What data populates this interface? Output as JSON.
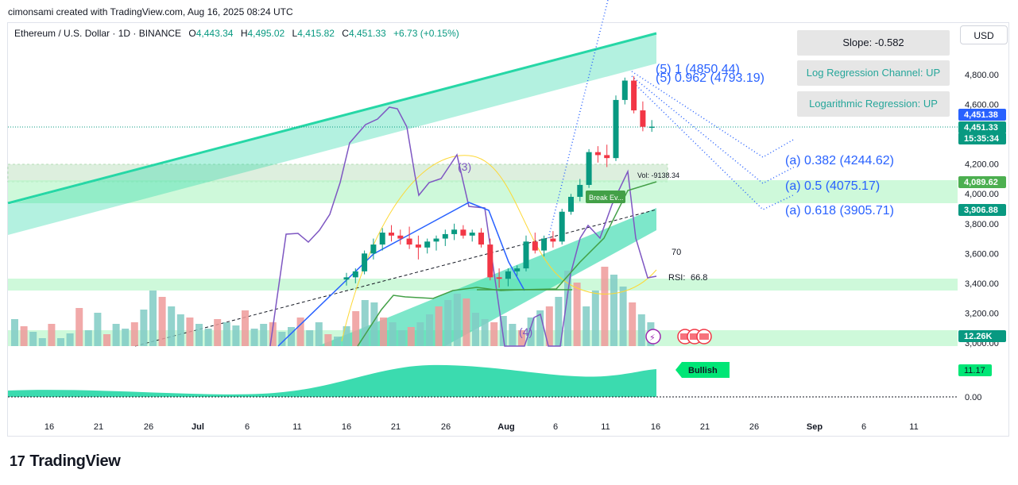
{
  "header": {
    "caption": "cimonsami created with TradingView.com, Aug 16, 2025 08:24 UTC"
  },
  "legend": {
    "symbol": "Ethereum / U.S. Dollar · 1D · BINANCE",
    "o_label": "O",
    "o": "4,443.34",
    "h_label": "H",
    "h": "4,495.02",
    "l_label": "L",
    "l": "4,415.82",
    "c_label": "C",
    "c": "4,451.33",
    "change": "+6.73 (+0.15%)"
  },
  "currency_button": "USD",
  "info_boxes": {
    "slope": "Slope: -0.582",
    "log_channel": "Log Regression Channel: UP",
    "log_regression": "Logarithmic Regression: UP"
  },
  "chart_data": {
    "type": "candlestick",
    "price_axis": {
      "ticks": [
        4800,
        4600,
        4200,
        4000,
        3800,
        3600,
        3400,
        3200,
        3000
      ],
      "tick_labels": [
        "4,800.00",
        "4,600.00",
        "4,200.00",
        "4,000.00",
        "3,800.00",
        "3,600.00",
        "3,400.00",
        "3,200.00",
        "3,000.00"
      ]
    },
    "x_axis": {
      "tick_labels": [
        "16",
        "21",
        "26",
        "Jul",
        "6",
        "11",
        "16",
        "21",
        "26",
        "Aug",
        "6",
        "11",
        "16",
        "21",
        "26",
        "Sep",
        "6",
        "11"
      ]
    },
    "price_tags": [
      {
        "label": "4,451.38",
        "color": "#2962ff"
      },
      {
        "label": "4,451.33",
        "color": "#089981"
      },
      {
        "label": "15:35:34",
        "color": "#089981"
      },
      {
        "label": "4,089.62",
        "color": "#4caf50"
      },
      {
        "label": "3,906.88",
        "color": "#089981"
      },
      {
        "label": "12.26K",
        "color": "#089981"
      }
    ],
    "candles": [
      {
        "o": 3425,
        "h": 3470,
        "l": 3385,
        "c": 3440
      },
      {
        "o": 3440,
        "h": 3500,
        "l": 3400,
        "c": 3480
      },
      {
        "o": 3480,
        "h": 3620,
        "l": 3460,
        "c": 3600
      },
      {
        "o": 3600,
        "h": 3700,
        "l": 3560,
        "c": 3660
      },
      {
        "o": 3660,
        "h": 3770,
        "l": 3620,
        "c": 3740
      },
      {
        "o": 3740,
        "h": 3790,
        "l": 3680,
        "c": 3720
      },
      {
        "o": 3720,
        "h": 3760,
        "l": 3660,
        "c": 3700
      },
      {
        "o": 3700,
        "h": 3780,
        "l": 3630,
        "c": 3660
      },
      {
        "o": 3660,
        "h": 3720,
        "l": 3560,
        "c": 3640
      },
      {
        "o": 3640,
        "h": 3700,
        "l": 3600,
        "c": 3680
      },
      {
        "o": 3680,
        "h": 3720,
        "l": 3620,
        "c": 3700
      },
      {
        "o": 3700,
        "h": 3760,
        "l": 3650,
        "c": 3730
      },
      {
        "o": 3730,
        "h": 3800,
        "l": 3690,
        "c": 3760
      },
      {
        "o": 3760,
        "h": 3790,
        "l": 3700,
        "c": 3720
      },
      {
        "o": 3720,
        "h": 3760,
        "l": 3680,
        "c": 3740
      },
      {
        "o": 3740,
        "h": 3770,
        "l": 3640,
        "c": 3660
      },
      {
        "o": 3660,
        "h": 3700,
        "l": 3420,
        "c": 3440
      },
      {
        "o": 3440,
        "h": 3500,
        "l": 3370,
        "c": 3430
      },
      {
        "o": 3430,
        "h": 3500,
        "l": 3380,
        "c": 3480
      },
      {
        "o": 3480,
        "h": 3520,
        "l": 3450,
        "c": 3500
      },
      {
        "o": 3500,
        "h": 3720,
        "l": 3480,
        "c": 3680
      },
      {
        "o": 3680,
        "h": 3740,
        "l": 3600,
        "c": 3620
      },
      {
        "o": 3620,
        "h": 3720,
        "l": 3580,
        "c": 3700
      },
      {
        "o": 3700,
        "h": 3750,
        "l": 3640,
        "c": 3680
      },
      {
        "o": 3680,
        "h": 3900,
        "l": 3660,
        "c": 3880
      },
      {
        "o": 3880,
        "h": 4000,
        "l": 3860,
        "c": 3980
      },
      {
        "o": 3980,
        "h": 4100,
        "l": 3950,
        "c": 4060
      },
      {
        "o": 4060,
        "h": 4300,
        "l": 4040,
        "c": 4280
      },
      {
        "o": 4280,
        "h": 4320,
        "l": 4210,
        "c": 4260
      },
      {
        "o": 4260,
        "h": 4330,
        "l": 4180,
        "c": 4240
      },
      {
        "o": 4240,
        "h": 4660,
        "l": 4220,
        "c": 4630
      },
      {
        "o": 4630,
        "h": 4780,
        "l": 4600,
        "c": 4760
      },
      {
        "o": 4760,
        "h": 4790,
        "l": 4540,
        "c": 4560
      },
      {
        "o": 4560,
        "h": 4620,
        "l": 4420,
        "c": 4450
      },
      {
        "o": 4443,
        "h": 4495,
        "l": 4416,
        "c": 4451
      }
    ],
    "regression_channel": {
      "label_slope": "Slope: -0.582"
    },
    "fib_extension": [
      {
        "label": "(5) 1 (4850.44)",
        "price": 4850.44
      },
      {
        "label": "(5) 0.962 (4793.19)",
        "price": 4793.19
      }
    ],
    "fib_retracement": [
      {
        "label": "(a) 0.382 (4244.62)",
        "price": 4244.62
      },
      {
        "label": "(a) 0.5 (4075.17)",
        "price": 4075.17
      },
      {
        "label": "(a) 0.618 (3905.71)",
        "price": 3905.71
      }
    ],
    "wave_labels": [
      "(3)",
      "(4)"
    ],
    "annotations": {
      "vol_label": "Vol: -9138.34",
      "break_label": "Break Ev...",
      "rsi_level": "70",
      "rsi_label": "RSI:",
      "rsi_value": "66.8",
      "oscillator_tag": "Bullish",
      "oscillator_value": "11.17",
      "oscillator_zero": "0.00"
    }
  },
  "brand": {
    "name": "TradingView",
    "mark": "17"
  }
}
